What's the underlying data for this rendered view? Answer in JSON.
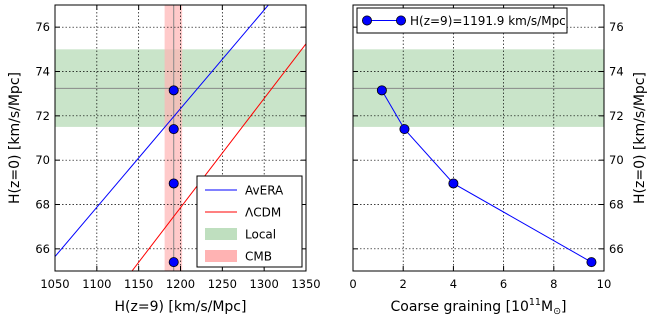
{
  "chart_data": [
    {
      "type": "line",
      "panel": "left",
      "xlabel": "H(z=9) [km/s/Mpc]",
      "ylabel": "H(z=0) [km/s/Mpc]",
      "xlim": [
        1050,
        1350
      ],
      "ylim": [
        65,
        77
      ],
      "xticks": [
        1050,
        1100,
        1150,
        1200,
        1250,
        1300,
        1350
      ],
      "yticks": [
        66,
        68,
        70,
        72,
        74,
        76
      ],
      "grid": true,
      "legend_position": "bottom-right",
      "series": [
        {
          "name": "AvERA",
          "style": "line",
          "color": "#0000ff",
          "x": [
            1050,
            1305
          ],
          "y": [
            65.65,
            77
          ]
        },
        {
          "name": "ΛCDM",
          "style": "line",
          "color": "#ff0000",
          "x": [
            1142,
            1350
          ],
          "y": [
            65,
            75.25
          ]
        },
        {
          "name": "Local",
          "style": "hband",
          "color": "#bfdfbf",
          "y": [
            71.5,
            75.0
          ],
          "center": 73.24
        },
        {
          "name": "CMB",
          "style": "vband",
          "color": "#ffb3b3",
          "x": [
            1181,
            1202
          ],
          "center": 1191.9
        },
        {
          "name": "",
          "style": "points",
          "color": "#0000ff",
          "x": [
            1191.9,
            1191.9,
            1191.9,
            1191.9
          ],
          "y": [
            73.15,
            71.4,
            68.95,
            65.4
          ]
        }
      ]
    },
    {
      "type": "line",
      "panel": "right",
      "xlabel": "Coarse graining [10",
      "xlabel_sup": "11",
      "xlabel_tail": "M",
      "xlabel_sub": "⊙",
      "xlabel_close": "]",
      "ylabel": "H(z=0) [km/s/Mpc]",
      "xlim": [
        0,
        10
      ],
      "ylim": [
        65,
        77
      ],
      "xticks": [
        0,
        2,
        4,
        6,
        8,
        10
      ],
      "yticks": [
        66,
        68,
        70,
        72,
        74,
        76
      ],
      "grid": true,
      "legend_position": "top-left",
      "series": [
        {
          "name": "H(z=9)=1191.9 km/s/Mpc",
          "style": "line-points",
          "color": "#0000ff",
          "x": [
            1.15,
            2.05,
            4.0,
            9.5
          ],
          "y": [
            73.15,
            71.4,
            68.95,
            65.4
          ]
        },
        {
          "name": "",
          "style": "hband",
          "color": "#bfdfbf",
          "y": [
            71.5,
            75.0
          ],
          "center": 73.24
        }
      ]
    }
  ]
}
